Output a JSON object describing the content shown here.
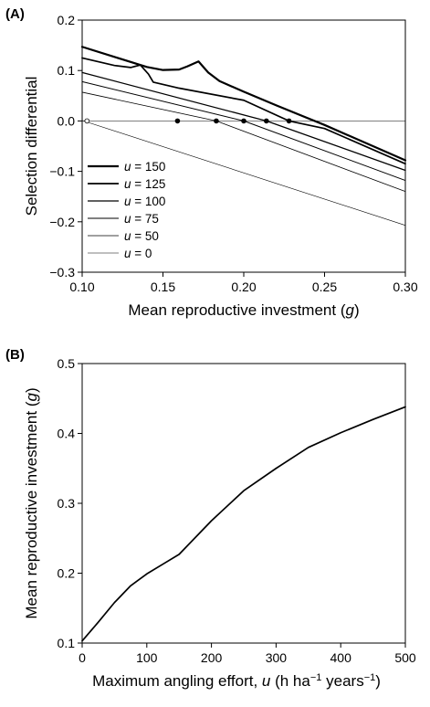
{
  "chart_data": [
    {
      "panel_label": "(A)",
      "type": "line",
      "title": "",
      "xlabel": "Mean reproductive investment (",
      "xlabel_var": "g",
      "xlabel_end": ")",
      "ylabel": "Selection differential",
      "xlim": [
        0.1,
        0.3
      ],
      "ylim": [
        -0.3,
        0.2
      ],
      "xticks": [
        0.1,
        0.15,
        0.2,
        0.25,
        0.3
      ],
      "xtick_labels": [
        "0.10",
        "0.15",
        "0.20",
        "0.25",
        "0.30"
      ],
      "yticks": [
        -0.3,
        -0.2,
        -0.1,
        0.0,
        0.1,
        0.2
      ],
      "ytick_labels": [
        "−0.3",
        "−0.2",
        "−0.1",
        "0.0",
        "0.1",
        "0.2"
      ],
      "zero_line": true,
      "grid": false,
      "legend_position": "bottom-left",
      "series": [
        {
          "name": "u = 150",
          "legend_var": "u",
          "legend_value": "= 150",
          "stroke": 2.2,
          "points": [
            [
              0.1,
              0.147
            ],
            [
              0.12,
              0.127
            ],
            [
              0.14,
              0.107
            ],
            [
              0.15,
              0.101
            ],
            [
              0.16,
              0.102
            ],
            [
              0.165,
              0.108
            ],
            [
              0.172,
              0.118
            ],
            [
              0.178,
              0.096
            ],
            [
              0.185,
              0.079
            ],
            [
              0.2,
              0.058
            ],
            [
              0.22,
              0.031
            ],
            [
              0.25,
              -0.008
            ],
            [
              0.3,
              -0.078
            ]
          ]
        },
        {
          "name": "u = 125",
          "legend_var": "u",
          "legend_value": "= 125",
          "stroke": 1.7,
          "points": [
            [
              0.1,
              0.125
            ],
            [
              0.12,
              0.11
            ],
            [
              0.13,
              0.106
            ],
            [
              0.136,
              0.111
            ],
            [
              0.141,
              0.093
            ],
            [
              0.144,
              0.077
            ],
            [
              0.16,
              0.065
            ],
            [
              0.2,
              0.041
            ],
            [
              0.228,
              0.0
            ],
            [
              0.25,
              -0.015
            ],
            [
              0.3,
              -0.085
            ]
          ]
        },
        {
          "name": "u = 100",
          "legend_var": "u",
          "legend_value": "= 100",
          "stroke": 1.3,
          "points": [
            [
              0.1,
              0.096
            ],
            [
              0.214,
              0.0
            ],
            [
              0.3,
              -0.098
            ]
          ]
        },
        {
          "name": "u =  75",
          "legend_var": "u",
          "legend_value": "=  75",
          "stroke": 1.0,
          "points": [
            [
              0.1,
              0.078
            ],
            [
              0.2,
              0.0
            ],
            [
              0.3,
              -0.118
            ]
          ]
        },
        {
          "name": "u =  50",
          "legend_var": "u",
          "legend_value": "=  50",
          "stroke": 0.8,
          "points": [
            [
              0.1,
              0.057
            ],
            [
              0.183,
              0.0
            ],
            [
              0.3,
              -0.14
            ]
          ]
        },
        {
          "name": "u =    0",
          "legend_var": "u",
          "legend_value": "=    0",
          "stroke": 0.6,
          "points": [
            [
              0.1,
              0.001
            ],
            [
              0.3,
              -0.207
            ]
          ]
        }
      ],
      "equilibria": [
        {
          "x": 0.103,
          "y": 0.0,
          "filled": false
        },
        {
          "x": 0.159,
          "y": 0.0,
          "filled": true
        },
        {
          "x": 0.183,
          "y": 0.0,
          "filled": true
        },
        {
          "x": 0.2,
          "y": 0.0,
          "filled": true
        },
        {
          "x": 0.214,
          "y": 0.0,
          "filled": true
        },
        {
          "x": 0.228,
          "y": 0.0,
          "filled": true
        }
      ]
    },
    {
      "panel_label": "(B)",
      "type": "line",
      "title": "",
      "xlabel": "Maximum angling effort, ",
      "xlabel_var": "u",
      "xlabel_end": " (h ha",
      "xlabel_sup1": "−1",
      "xlabel_mid": " years",
      "xlabel_sup2": "−1",
      "xlabel_close": ")",
      "ylabel": "Mean reproductive investment (",
      "ylabel_var": "g",
      "ylabel_end": ")",
      "xlim": [
        0,
        500
      ],
      "ylim": [
        0.1,
        0.5
      ],
      "xticks": [
        0,
        100,
        200,
        300,
        400,
        500
      ],
      "xtick_labels": [
        "0",
        "100",
        "200",
        "300",
        "400",
        "500"
      ],
      "yticks": [
        0.1,
        0.2,
        0.3,
        0.4,
        0.5
      ],
      "ytick_labels": [
        "0.1",
        "0.2",
        "0.3",
        "0.4",
        "0.5"
      ],
      "grid": false,
      "series": [
        {
          "name": "",
          "stroke": 1.7,
          "points": [
            [
              0,
              0.103
            ],
            [
              25,
              0.13
            ],
            [
              50,
              0.158
            ],
            [
              75,
              0.182
            ],
            [
              100,
              0.199
            ],
            [
              125,
              0.213
            ],
            [
              150,
              0.227
            ],
            [
              200,
              0.275
            ],
            [
              250,
              0.318
            ],
            [
              300,
              0.35
            ],
            [
              350,
              0.38
            ],
            [
              400,
              0.401
            ],
            [
              450,
              0.42
            ],
            [
              500,
              0.438
            ]
          ]
        }
      ]
    }
  ]
}
